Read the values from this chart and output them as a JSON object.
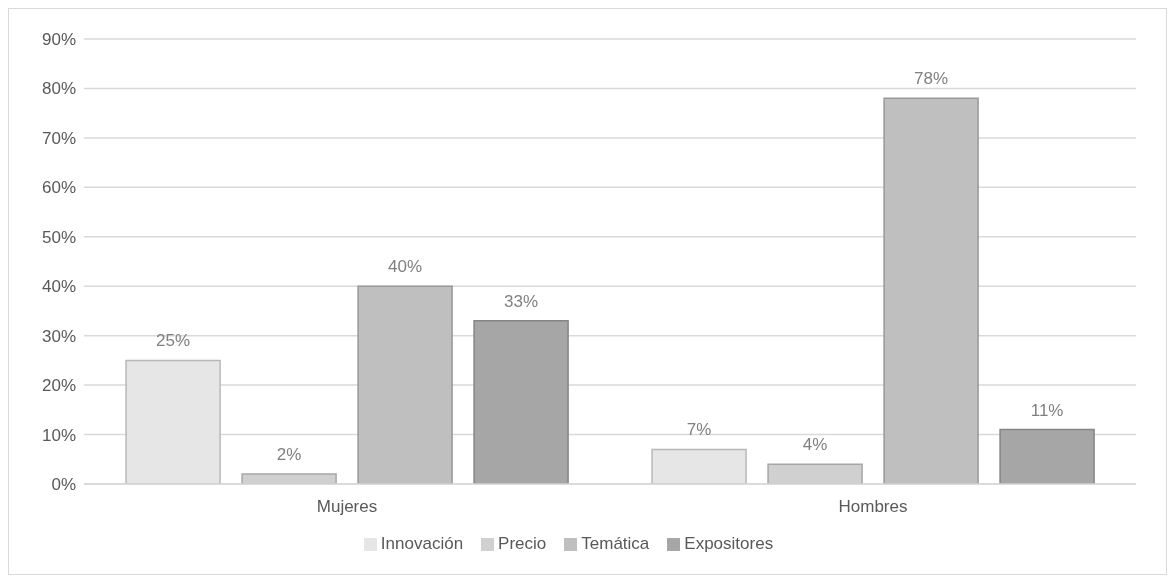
{
  "chart_data": {
    "type": "bar",
    "categories": [
      "Mujeres",
      "Hombres"
    ],
    "series": [
      {
        "name": "Innovación",
        "color": "#e6e6e6",
        "values": [
          25,
          7
        ],
        "value_labels": [
          "25%",
          "7%"
        ]
      },
      {
        "name": "Precio",
        "color": "#d0d0d0",
        "values": [
          2,
          4
        ],
        "value_labels": [
          "2%",
          "4%"
        ]
      },
      {
        "name": "Temática",
        "color": "#bfbfbf",
        "values": [
          40,
          78
        ],
        "value_labels": [
          "40%",
          "78%"
        ]
      },
      {
        "name": "Expositores",
        "color": "#a6a6a6",
        "values": [
          33,
          11
        ],
        "value_labels": [
          "33%",
          "11%"
        ]
      }
    ],
    "ylim": [
      0,
      90
    ],
    "yticks": [
      {
        "value": 0,
        "label": "0%"
      },
      {
        "value": 10,
        "label": "10%"
      },
      {
        "value": 20,
        "label": "20%"
      },
      {
        "value": 30,
        "label": "30%"
      },
      {
        "value": 40,
        "label": "40%"
      },
      {
        "value": 50,
        "label": "50%"
      },
      {
        "value": 60,
        "label": "60%"
      },
      {
        "value": 70,
        "label": "70%"
      },
      {
        "value": 80,
        "label": "80%"
      },
      {
        "value": 90,
        "label": "90%"
      }
    ],
    "grid": "y",
    "legend": "bottom"
  }
}
